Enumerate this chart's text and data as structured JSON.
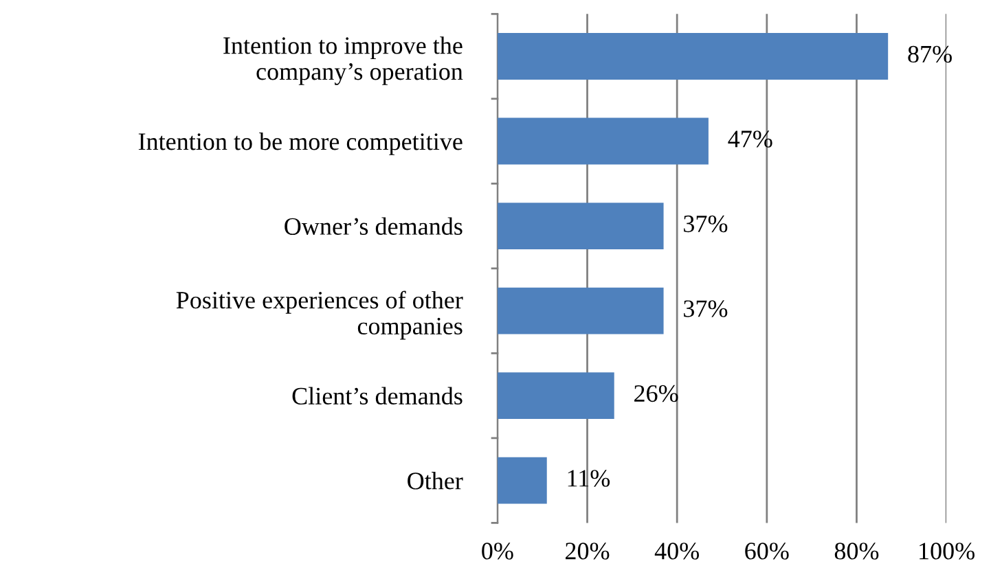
{
  "chart_data": {
    "type": "bar",
    "orientation": "horizontal",
    "categories": [
      "Intention to improve the\ncompany’s operation",
      "Intention to be more competitive",
      "Owner’s demands",
      "Positive experiences of other\ncompanies",
      "Client’s demands",
      "Other"
    ],
    "values": [
      87,
      47,
      37,
      37,
      26,
      11
    ],
    "value_labels": [
      "87%",
      "47%",
      "37%",
      "37%",
      "26%",
      "11%"
    ],
    "color": "#4f81bd",
    "xlim": [
      0,
      100
    ],
    "xticks": [
      {
        "value": 0,
        "label": "0%"
      },
      {
        "value": 20,
        "label": "20%"
      },
      {
        "value": 40,
        "label": "40%"
      },
      {
        "value": 60,
        "label": "60%"
      },
      {
        "value": 80,
        "label": "80%"
      },
      {
        "value": 100,
        "label": "100%"
      }
    ],
    "grid": "x",
    "legend": false
  }
}
